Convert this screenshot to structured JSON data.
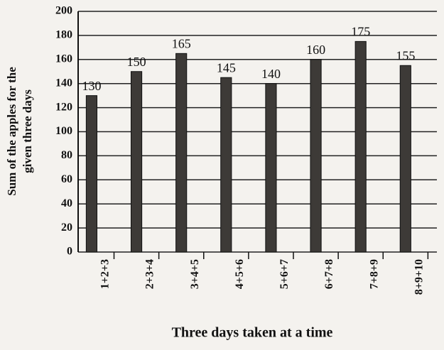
{
  "chart_data": {
    "type": "bar",
    "xlabel": "Three days taken at a time",
    "ylabel": [
      "Sum of the apples for the",
      "given three days"
    ],
    "categories": [
      "1+2+3",
      "2+3+4",
      "3+4+5",
      "4+5+6",
      "5+6+7",
      "6+7+8",
      "7+8+9",
      "8+9+10"
    ],
    "values": [
      130,
      150,
      165,
      145,
      140,
      160,
      175,
      155
    ],
    "color": "#3d3a37",
    "ylim": [
      0,
      200
    ],
    "yticks": [
      0,
      20,
      40,
      60,
      80,
      100,
      120,
      140,
      160,
      180,
      200
    ],
    "grid": true
  }
}
